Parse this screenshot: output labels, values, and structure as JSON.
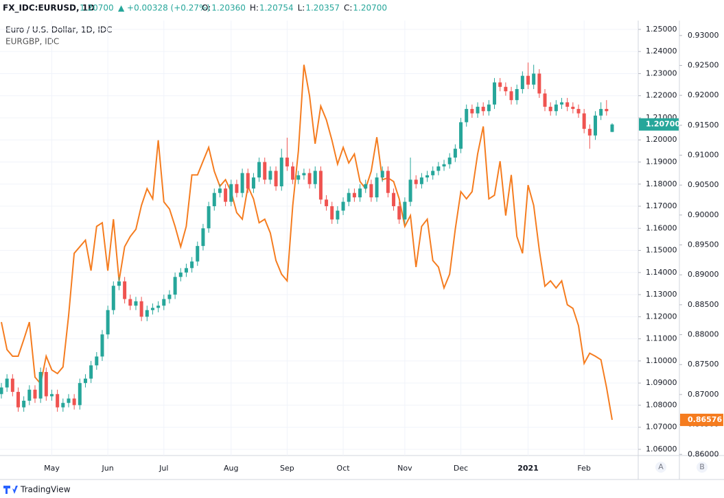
{
  "header": {
    "symbol": "FX_IDC:EURUSD, 1D",
    "last": "1.20700",
    "change": "▲ +0.00328 (+0.27%)",
    "ohlc": [
      {
        "label": "O:",
        "value": "1.20360"
      },
      {
        "label": "H:",
        "value": "1.20754"
      },
      {
        "label": "L:",
        "value": "1.20357"
      },
      {
        "label": "C:",
        "value": "1.20700"
      }
    ]
  },
  "footer": {
    "brand": "TradingView",
    "axis_buttons": [
      "A",
      "B"
    ]
  },
  "chart_data": {
    "type": "candlestick",
    "grid": true,
    "categories": [
      null,
      null,
      null,
      null,
      null,
      null,
      null,
      null,
      null,
      "May",
      null,
      null,
      null,
      null,
      null,
      null,
      null,
      null,
      null,
      "Jun",
      null,
      null,
      null,
      null,
      null,
      null,
      null,
      null,
      null,
      "Jul",
      null,
      null,
      null,
      null,
      null,
      null,
      null,
      null,
      null,
      null,
      null,
      "Aug",
      null,
      null,
      null,
      null,
      null,
      null,
      null,
      null,
      null,
      "Sep",
      null,
      null,
      null,
      null,
      null,
      null,
      null,
      null,
      null,
      "Oct",
      null,
      null,
      null,
      null,
      null,
      null,
      null,
      null,
      null,
      null,
      "Nov",
      null,
      null,
      null,
      null,
      null,
      null,
      null,
      null,
      null,
      "Dec",
      null,
      null,
      null,
      null,
      null,
      null,
      null,
      null,
      null,
      null,
      null,
      "2021",
      null,
      null,
      null,
      null,
      null,
      null,
      null,
      null,
      null,
      "Feb",
      null,
      null,
      null,
      null,
      null
    ],
    "ylim": [
      1.0572,
      1.254
    ],
    "yticks": [
      {
        "value": 1.25,
        "label": "1.25000"
      },
      {
        "value": 1.24,
        "label": "1.24000"
      },
      {
        "value": 1.23,
        "label": "1.23000"
      },
      {
        "value": 1.22,
        "label": "1.22000"
      },
      {
        "value": 1.21,
        "label": "1.21000"
      },
      {
        "value": 1.2,
        "label": "1.20000"
      },
      {
        "value": 1.19,
        "label": "1.19000"
      },
      {
        "value": 1.18,
        "label": "1.18000"
      },
      {
        "value": 1.17,
        "label": "1.17000"
      },
      {
        "value": 1.16,
        "label": "1.16000"
      },
      {
        "value": 1.15,
        "label": "1.15000"
      },
      {
        "value": 1.14,
        "label": "1.14000"
      },
      {
        "value": 1.13,
        "label": "1.13000"
      },
      {
        "value": 1.12,
        "label": "1.12000"
      },
      {
        "value": 1.11,
        "label": "1.11000"
      },
      {
        "value": 1.1,
        "label": "1.10000"
      },
      {
        "value": 1.09,
        "label": "1.09000"
      },
      {
        "value": 1.08,
        "label": "1.08000"
      },
      {
        "value": 1.07,
        "label": "1.07000"
      },
      {
        "value": 1.06,
        "label": "1.06000"
      }
    ],
    "y2lim": [
      0.8598,
      0.9325
    ],
    "y2ticks": [
      {
        "value": 0.93,
        "label": "0.93000"
      },
      {
        "value": 0.925,
        "label": "0.92500"
      },
      {
        "value": 0.92,
        "label": "0.92000"
      },
      {
        "value": 0.915,
        "label": "0.91500"
      },
      {
        "value": 0.91,
        "label": "0.91000"
      },
      {
        "value": 0.905,
        "label": "0.90500"
      },
      {
        "value": 0.9,
        "label": "0.90000"
      },
      {
        "value": 0.895,
        "label": "0.89500"
      },
      {
        "value": 0.89,
        "label": "0.89000"
      },
      {
        "value": 0.885,
        "label": "0.88500"
      },
      {
        "value": 0.88,
        "label": "0.88000"
      },
      {
        "value": 0.875,
        "label": "0.87500"
      },
      {
        "value": 0.87,
        "label": "0.87000"
      },
      {
        "value": 0.865,
        "label": "0.86500"
      },
      {
        "value": 0.86,
        "label": "0.86000"
      }
    ],
    "series": [
      {
        "name": "Euro / U.S. Dollar, 1D, IDC",
        "type": "candlestick",
        "up_color": "#26a69a",
        "down_color": "#ef5350",
        "last_label": "1.20700",
        "ohlc": [
          [
            1.085,
            1.09,
            1.083,
            1.088
          ],
          [
            1.088,
            1.094,
            1.086,
            1.092
          ],
          [
            1.092,
            1.094,
            1.084,
            1.086
          ],
          [
            1.086,
            1.088,
            1.077,
            1.079
          ],
          [
            1.079,
            1.084,
            1.077,
            1.082
          ],
          [
            1.082,
            1.089,
            1.08,
            1.087
          ],
          [
            1.087,
            1.089,
            1.081,
            1.083
          ],
          [
            1.083,
            1.097,
            1.081,
            1.095
          ],
          [
            1.095,
            1.097,
            1.082,
            1.084
          ],
          [
            1.084,
            1.087,
            1.082,
            1.085
          ],
          [
            1.085,
            1.087,
            1.077,
            1.079
          ],
          [
            1.079,
            1.083,
            1.077,
            1.081
          ],
          [
            1.081,
            1.085,
            1.079,
            1.083
          ],
          [
            1.083,
            1.085,
            1.078,
            1.08
          ],
          [
            1.08,
            1.092,
            1.078,
            1.09
          ],
          [
            1.09,
            1.094,
            1.088,
            1.092
          ],
          [
            1.092,
            1.1,
            1.09,
            1.098
          ],
          [
            1.098,
            1.104,
            1.096,
            1.102
          ],
          [
            1.102,
            1.114,
            1.1,
            1.112
          ],
          [
            1.112,
            1.125,
            1.11,
            1.123
          ],
          [
            1.123,
            1.136,
            1.121,
            1.134
          ],
          [
            1.134,
            1.138,
            1.132,
            1.136
          ],
          [
            1.136,
            1.138,
            1.126,
            1.128
          ],
          [
            1.128,
            1.13,
            1.123,
            1.125
          ],
          [
            1.125,
            1.129,
            1.123,
            1.127
          ],
          [
            1.127,
            1.129,
            1.118,
            1.12
          ],
          [
            1.12,
            1.125,
            1.118,
            1.123
          ],
          [
            1.123,
            1.126,
            1.121,
            1.124
          ],
          [
            1.124,
            1.127,
            1.122,
            1.125
          ],
          [
            1.125,
            1.13,
            1.123,
            1.128
          ],
          [
            1.128,
            1.132,
            1.126,
            1.13
          ],
          [
            1.13,
            1.14,
            1.128,
            1.138
          ],
          [
            1.138,
            1.142,
            1.136,
            1.14
          ],
          [
            1.14,
            1.144,
            1.138,
            1.142
          ],
          [
            1.142,
            1.147,
            1.14,
            1.145
          ],
          [
            1.145,
            1.154,
            1.143,
            1.152
          ],
          [
            1.152,
            1.162,
            1.15,
            1.16
          ],
          [
            1.16,
            1.172,
            1.158,
            1.17
          ],
          [
            1.17,
            1.178,
            1.168,
            1.176
          ],
          [
            1.176,
            1.18,
            1.174,
            1.178
          ],
          [
            1.178,
            1.18,
            1.17,
            1.172
          ],
          [
            1.172,
            1.182,
            1.17,
            1.18
          ],
          [
            1.18,
            1.182,
            1.174,
            1.176
          ],
          [
            1.176,
            1.187,
            1.174,
            1.185
          ],
          [
            1.185,
            1.187,
            1.176,
            1.178
          ],
          [
            1.178,
            1.185,
            1.176,
            1.183
          ],
          [
            1.183,
            1.192,
            1.181,
            1.19
          ],
          [
            1.19,
            1.192,
            1.18,
            1.182
          ],
          [
            1.182,
            1.188,
            1.18,
            1.186
          ],
          [
            1.186,
            1.188,
            1.177,
            1.179
          ],
          [
            1.179,
            1.196,
            1.177,
            1.192
          ],
          [
            1.192,
            1.201,
            1.186,
            1.188
          ],
          [
            1.188,
            1.19,
            1.18,
            1.182
          ],
          [
            1.182,
            1.186,
            1.18,
            1.184
          ],
          [
            1.184,
            1.187,
            1.182,
            1.185
          ],
          [
            1.185,
            1.187,
            1.178,
            1.18
          ],
          [
            1.18,
            1.188,
            1.178,
            1.186
          ],
          [
            1.186,
            1.188,
            1.171,
            1.173
          ],
          [
            1.173,
            1.175,
            1.168,
            1.17
          ],
          [
            1.17,
            1.172,
            1.162,
            1.164
          ],
          [
            1.164,
            1.17,
            1.162,
            1.168
          ],
          [
            1.168,
            1.174,
            1.166,
            1.172
          ],
          [
            1.172,
            1.178,
            1.17,
            1.176
          ],
          [
            1.176,
            1.178,
            1.172,
            1.174
          ],
          [
            1.174,
            1.18,
            1.172,
            1.178
          ],
          [
            1.178,
            1.182,
            1.176,
            1.18
          ],
          [
            1.18,
            1.182,
            1.172,
            1.174
          ],
          [
            1.174,
            1.185,
            1.172,
            1.183
          ],
          [
            1.183,
            1.188,
            1.181,
            1.186
          ],
          [
            1.186,
            1.188,
            1.174,
            1.176
          ],
          [
            1.176,
            1.178,
            1.168,
            1.17
          ],
          [
            1.17,
            1.172,
            1.162,
            1.164
          ],
          [
            1.164,
            1.174,
            1.162,
            1.172
          ],
          [
            1.172,
            1.192,
            1.17,
            1.182
          ],
          [
            1.182,
            1.184,
            1.178,
            1.18
          ],
          [
            1.18,
            1.185,
            1.178,
            1.183
          ],
          [
            1.183,
            1.186,
            1.181,
            1.184
          ],
          [
            1.184,
            1.188,
            1.182,
            1.186
          ],
          [
            1.186,
            1.19,
            1.184,
            1.188
          ],
          [
            1.188,
            1.191,
            1.186,
            1.189
          ],
          [
            1.189,
            1.194,
            1.187,
            1.192
          ],
          [
            1.192,
            1.198,
            1.19,
            1.196
          ],
          [
            1.196,
            1.21,
            1.194,
            1.208
          ],
          [
            1.208,
            1.216,
            1.206,
            1.214
          ],
          [
            1.214,
            1.216,
            1.21,
            1.212
          ],
          [
            1.212,
            1.217,
            1.21,
            1.215
          ],
          [
            1.215,
            1.217,
            1.211,
            1.213
          ],
          [
            1.213,
            1.218,
            1.211,
            1.216
          ],
          [
            1.216,
            1.228,
            1.214,
            1.226
          ],
          [
            1.226,
            1.228,
            1.222,
            1.224
          ],
          [
            1.224,
            1.226,
            1.22,
            1.222
          ],
          [
            1.222,
            1.224,
            1.216,
            1.218
          ],
          [
            1.218,
            1.225,
            1.216,
            1.223
          ],
          [
            1.223,
            1.231,
            1.221,
            1.229
          ],
          [
            1.229,
            1.235,
            1.223,
            1.225
          ],
          [
            1.225,
            1.234,
            1.223,
            1.23
          ],
          [
            1.23,
            1.232,
            1.219,
            1.221
          ],
          [
            1.221,
            1.223,
            1.213,
            1.215
          ],
          [
            1.215,
            1.217,
            1.211,
            1.213
          ],
          [
            1.213,
            1.218,
            1.211,
            1.216
          ],
          [
            1.216,
            1.219,
            1.214,
            1.217
          ],
          [
            1.217,
            1.219,
            1.213,
            1.215
          ],
          [
            1.215,
            1.217,
            1.212,
            1.214
          ],
          [
            1.214,
            1.216,
            1.21,
            1.212
          ],
          [
            1.212,
            1.214,
            1.203,
            1.205
          ],
          [
            1.205,
            1.207,
            1.196,
            1.202
          ],
          [
            1.202,
            1.213,
            1.2,
            1.211
          ],
          [
            1.211,
            1.217,
            1.209,
            1.214
          ],
          [
            1.214,
            1.218,
            1.211,
            1.213
          ],
          [
            1.2036,
            1.20754,
            1.20357,
            1.207
          ]
        ]
      },
      {
        "name": "EURGBP, IDC",
        "type": "line",
        "color": "#f57c1f",
        "axis": "y2",
        "last_label": "0.86576",
        "values": [
          0.8821,
          0.8775,
          0.8764,
          0.8764,
          0.8792,
          0.8821,
          0.8729,
          0.8718,
          0.8764,
          0.8741,
          0.8735,
          0.8746,
          0.8832,
          0.8936,
          0.8947,
          0.8958,
          0.8907,
          0.8981,
          0.8987,
          0.8907,
          0.8993,
          0.889,
          0.8947,
          0.8964,
          0.8976,
          0.9016,
          0.9044,
          0.9027,
          0.9125,
          0.9022,
          0.901,
          0.8981,
          0.8947,
          0.8981,
          0.9067,
          0.9067,
          0.909,
          0.9113,
          0.9073,
          0.9048,
          0.9059,
          0.9039,
          0.9004,
          0.8993,
          0.9048,
          0.9027,
          0.8987,
          0.8993,
          0.897,
          0.8924,
          0.8901,
          0.889,
          0.9016,
          0.9107,
          0.9251,
          0.9199,
          0.9119,
          0.9182,
          0.9159,
          0.9125,
          0.9085,
          0.9113,
          0.9087,
          0.9102,
          0.9056,
          0.9044,
          0.9073,
          0.913,
          0.9059,
          0.9062,
          0.9056,
          0.9027,
          0.8981,
          0.8999,
          0.8913,
          0.8981,
          0.8993,
          0.8924,
          0.8913,
          0.8878,
          0.8901,
          0.8976,
          0.9039,
          0.9027,
          0.9039,
          0.9102,
          0.9148,
          0.9027,
          0.9033,
          0.909,
          0.8999,
          0.9067,
          0.8964,
          0.8936,
          0.905,
          0.9016,
          0.8941,
          0.8881,
          0.889,
          0.8878,
          0.889,
          0.885,
          0.8844,
          0.8815,
          0.8752,
          0.8769,
          0.8764,
          0.8758,
          0.8712,
          0.86576
        ]
      }
    ]
  }
}
